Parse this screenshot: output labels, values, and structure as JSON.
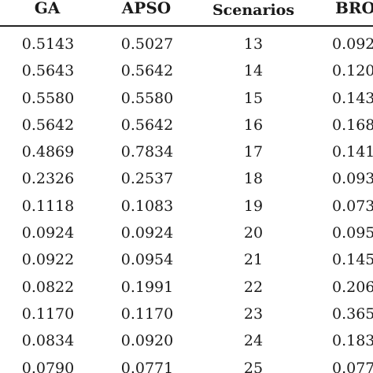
{
  "table": {
    "headers": {
      "ga": "GA",
      "apso": "APSO",
      "scenarios": "Scenarios",
      "bro": "BRO"
    },
    "rows": [
      {
        "ga": "0.5143",
        "apso": "0.5027",
        "scenario": "13",
        "bro": "0.092"
      },
      {
        "ga": "0.5643",
        "apso": "0.5642",
        "scenario": "14",
        "bro": "0.120"
      },
      {
        "ga": "0.5580",
        "apso": "0.5580",
        "scenario": "15",
        "bro": "0.143"
      },
      {
        "ga": "0.5642",
        "apso": "0.5642",
        "scenario": "16",
        "bro": "0.168"
      },
      {
        "ga": "0.4869",
        "apso": "0.7834",
        "scenario": "17",
        "bro": "0.141"
      },
      {
        "ga": "0.2326",
        "apso": "0.2537",
        "scenario": "18",
        "bro": "0.093"
      },
      {
        "ga": "0.1118",
        "apso": "0.1083",
        "scenario": "19",
        "bro": "0.073"
      },
      {
        "ga": "0.0924",
        "apso": "0.0924",
        "scenario": "20",
        "bro": "0.095"
      },
      {
        "ga": "0.0922",
        "apso": "0.0954",
        "scenario": "21",
        "bro": "0.145"
      },
      {
        "ga": "0.0822",
        "apso": "0.1991",
        "scenario": "22",
        "bro": "0.206"
      },
      {
        "ga": "0.1170",
        "apso": "0.1170",
        "scenario": "23",
        "bro": "0.365"
      },
      {
        "ga": "0.0834",
        "apso": "0.0920",
        "scenario": "24",
        "bro": "0.183"
      },
      {
        "ga": "0.0790",
        "apso": "0.0771",
        "scenario": "25",
        "bro": "0.077"
      }
    ]
  }
}
